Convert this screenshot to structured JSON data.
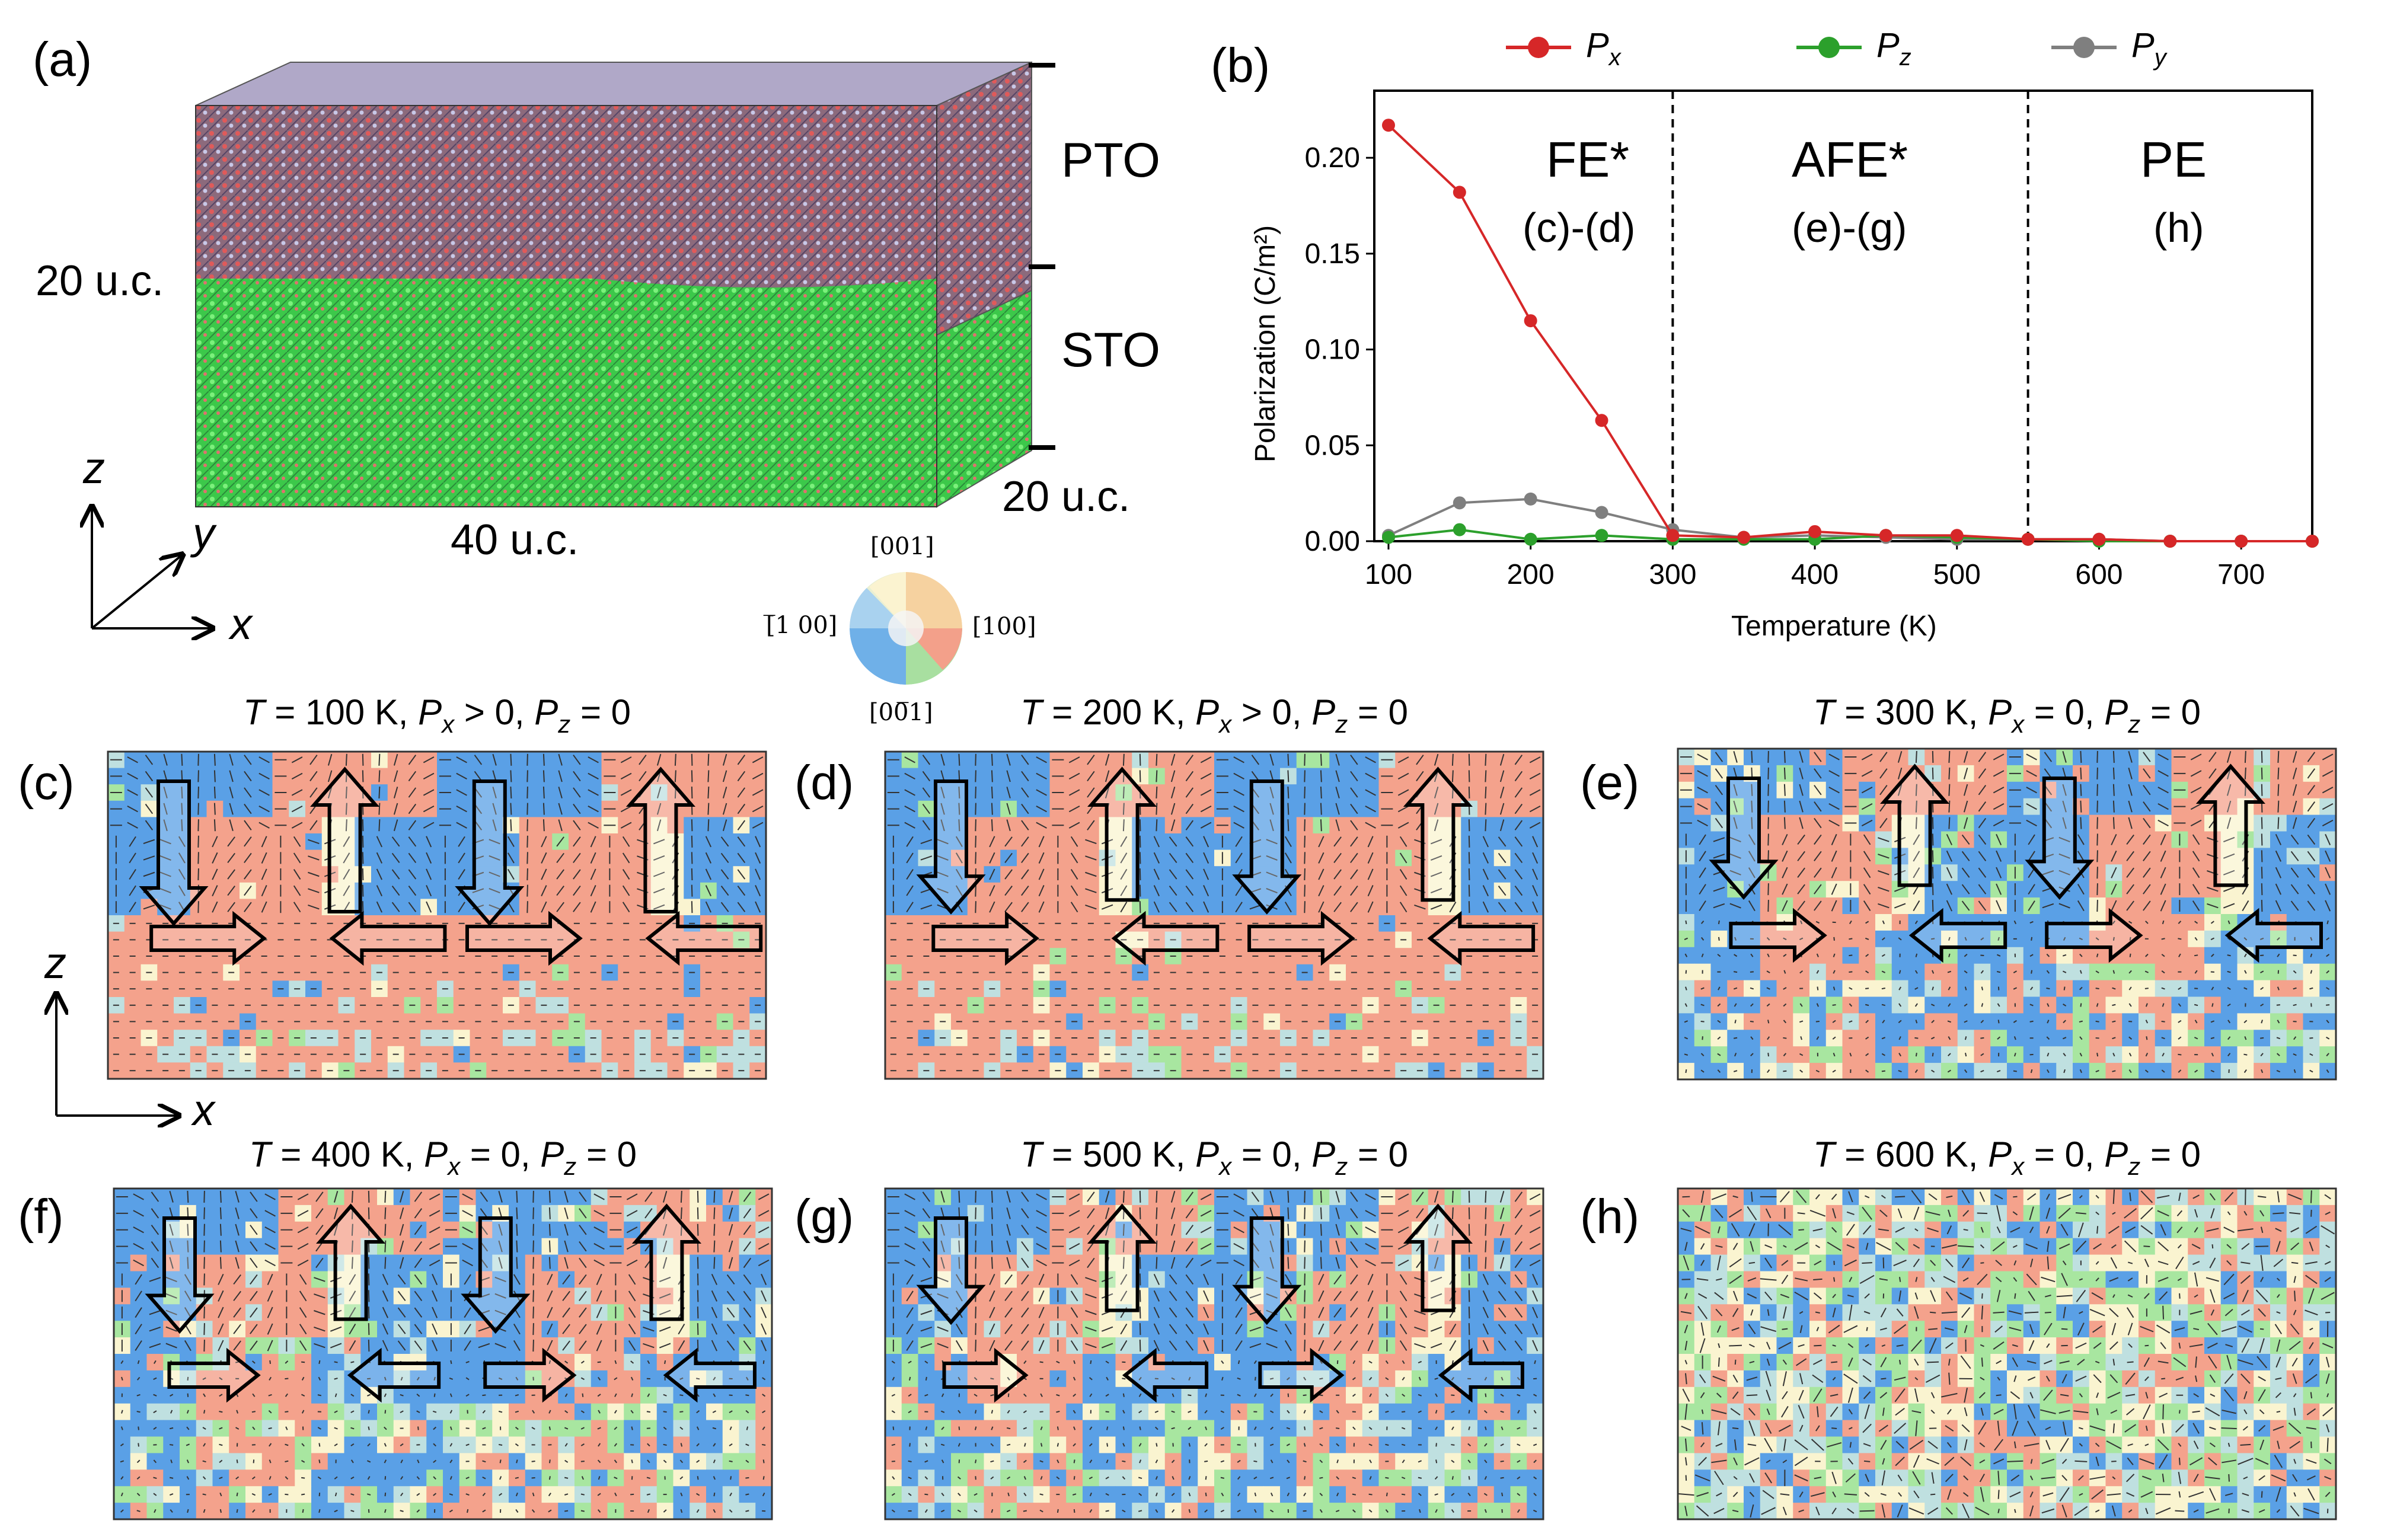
{
  "panel_a": {
    "label": "(a)",
    "layer_top": "PTO",
    "layer_bottom": "STO",
    "height_label": "20 u.c.",
    "depth_label": "20 u.c.",
    "width_label": "40 u.c.",
    "axis_z": "z",
    "axis_y": "y",
    "axis_x": "x",
    "colors": {
      "pto": "#8a5a6a",
      "sto": "#3ecf3e",
      "frame": "#000000"
    }
  },
  "colorwheel": {
    "top": "[001]",
    "right": "[100]",
    "bottom": "[00̅1]",
    "left": "[̅1 00]"
  },
  "panel_b": {
    "label": "(b)",
    "phase_labels": [
      {
        "name": "FE*",
        "panels": "(c)-(d)"
      },
      {
        "name": "AFE*",
        "panels": "(e)-(g)"
      },
      {
        "name": "PE",
        "panels": "(h)"
      }
    ]
  },
  "chart_data": {
    "type": "line",
    "xlabel": "Temperature (K)",
    "ylabel": "Polarization (C/m²)",
    "xlim": [
      90,
      750
    ],
    "ylim": [
      0,
      0.235
    ],
    "xticks": [
      "100",
      "200",
      "300",
      "400",
      "500",
      "600",
      "700"
    ],
    "yticks": [
      "0.00",
      "0.05",
      "0.10",
      "0.15",
      "0.20"
    ],
    "vlines": [
      300,
      550
    ],
    "legend": "top-outside",
    "series": [
      {
        "name": "Px",
        "color": "#d62728",
        "x": [
          100,
          150,
          200,
          250,
          300,
          350,
          400,
          450,
          500,
          550,
          600,
          650,
          700,
          750
        ],
        "y": [
          0.217,
          0.182,
          0.115,
          0.063,
          0.003,
          0.002,
          0.005,
          0.003,
          0.003,
          0.001,
          0.001,
          0.0,
          0.0,
          0.0
        ]
      },
      {
        "name": "Pz",
        "color": "#2ca02c",
        "x": [
          100,
          150,
          200,
          250,
          300,
          350,
          400,
          450,
          500,
          550,
          600,
          650,
          700,
          750
        ],
        "y": [
          0.002,
          0.006,
          0.001,
          0.003,
          0.001,
          0.001,
          0.001,
          0.003,
          0.002,
          0.001,
          0.0,
          0.0,
          0.0,
          0.0
        ]
      },
      {
        "name": "Py",
        "color": "#7f7f7f",
        "x": [
          100,
          150,
          200,
          250,
          300,
          350,
          400,
          450,
          500,
          550,
          600,
          650,
          700,
          750
        ],
        "y": [
          0.003,
          0.02,
          0.022,
          0.015,
          0.006,
          0.002,
          0.003,
          0.002,
          0.001,
          0.001,
          0.001,
          0.0,
          0.0,
          0.0
        ]
      }
    ]
  },
  "small_axes": {
    "z": "z",
    "x": "x"
  },
  "maps": [
    {
      "label": "(c)",
      "T": "T",
      "rest": " = 100 K, ",
      "px": "P",
      "pxsub": "x",
      "pxrel": " > 0, ",
      "pz": "P",
      "pzsub": "z",
      "pzrel": " = 0"
    },
    {
      "label": "(d)",
      "T": "T",
      "rest": " = 200 K, ",
      "px": "P",
      "pxsub": "x",
      "pxrel": " > 0, ",
      "pz": "P",
      "pzsub": "z",
      "pzrel": " = 0"
    },
    {
      "label": "(e)",
      "T": "T",
      "rest": " = 300 K, ",
      "px": "P",
      "pxsub": "x",
      "pxrel": " = 0, ",
      "pz": "P",
      "pzsub": "z",
      "pzrel": " = 0"
    },
    {
      "label": "(f)",
      "T": "T",
      "rest": " = 400 K, ",
      "px": "P",
      "pxsub": "x",
      "pxrel": " = 0, ",
      "pz": "P",
      "pzsub": "z",
      "pzrel": " = 0"
    },
    {
      "label": "(g)",
      "T": "T",
      "rest": " = 500 K, ",
      "px": "P",
      "pxsub": "x",
      "pxrel": " = 0, ",
      "pz": "P",
      "pzsub": "z",
      "pzrel": " = 0"
    },
    {
      "label": "(h)",
      "T": "T",
      "rest": " = 600 K, ",
      "px": "P",
      "pxsub": "x",
      "pxrel": " = 0, ",
      "pz": "P",
      "pzsub": "z",
      "pzrel": " = 0"
    }
  ],
  "map_colors": {
    "red": "#f4a28c",
    "blue": "#5aa0e6",
    "green": "#a8e6a0",
    "cream": "#faf4d0",
    "teal": "#bfe0e0"
  }
}
